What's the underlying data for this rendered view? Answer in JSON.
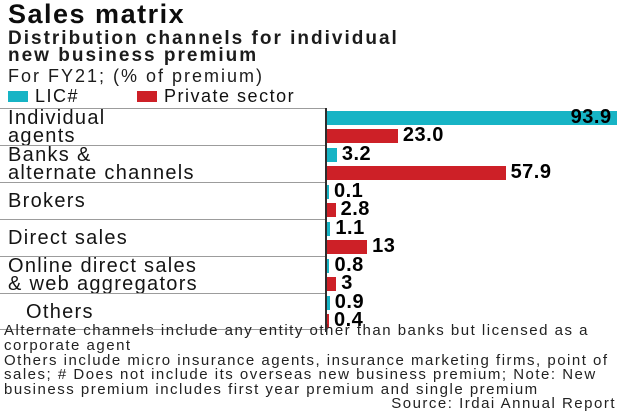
{
  "header": {
    "title": "Sales matrix",
    "subtitle": "Distribution channels for individual new business premium",
    "subtitle_lines": [
      "Distribution channels for individual",
      "new business premium"
    ],
    "period": "For FY21; (% of premium)",
    "legend": [
      {
        "label": "LIC#",
        "color": "#17b4c5"
      },
      {
        "label": "Private sector",
        "color": "#cd2027"
      }
    ]
  },
  "chart_data": {
    "type": "bar",
    "orientation": "horizontal",
    "title": "Sales matrix",
    "xlabel": "",
    "ylabel": "",
    "xlim": [
      0,
      95
    ],
    "grid": false,
    "legend_position": "top",
    "categories": [
      "Individual agents",
      "Banks & alternate channels",
      "Brokers",
      "Direct sales",
      "Online direct sales & web aggregators",
      "Others"
    ],
    "label_lines": [
      [
        "Individual",
        "agents"
      ],
      [
        "Banks &",
        "alternate channels"
      ],
      [
        "Brokers"
      ],
      [
        "Direct sales"
      ],
      [
        "Online direct sales",
        "& web aggregators"
      ],
      [
        "Others"
      ]
    ],
    "series": [
      {
        "name": "LIC#",
        "color": "#17b4c5",
        "values": [
          93.9,
          3.2,
          0.1,
          1.1,
          0.8,
          0.9
        ]
      },
      {
        "name": "Private sector",
        "color": "#cd2027",
        "values": [
          23.0,
          57.9,
          2.8,
          13,
          3,
          0.4
        ]
      }
    ],
    "value_labels": [
      [
        "93.9",
        "23.0"
      ],
      [
        "3.2",
        "57.9"
      ],
      [
        "0.1",
        "2.8"
      ],
      [
        "1.1",
        "13"
      ],
      [
        "0.8",
        "3"
      ],
      [
        "0.9",
        "0.4"
      ]
    ]
  },
  "footer": {
    "note1": "Alternate channels include any entity other than banks but licensed as a corporate agent",
    "note2": "Others include micro insurance agents, insurance marketing firms, point of sales; # Does not include its overseas new business premium; Note: New business premium includes first year premium and single premium",
    "source": "Source: Irdai Annual Report"
  }
}
